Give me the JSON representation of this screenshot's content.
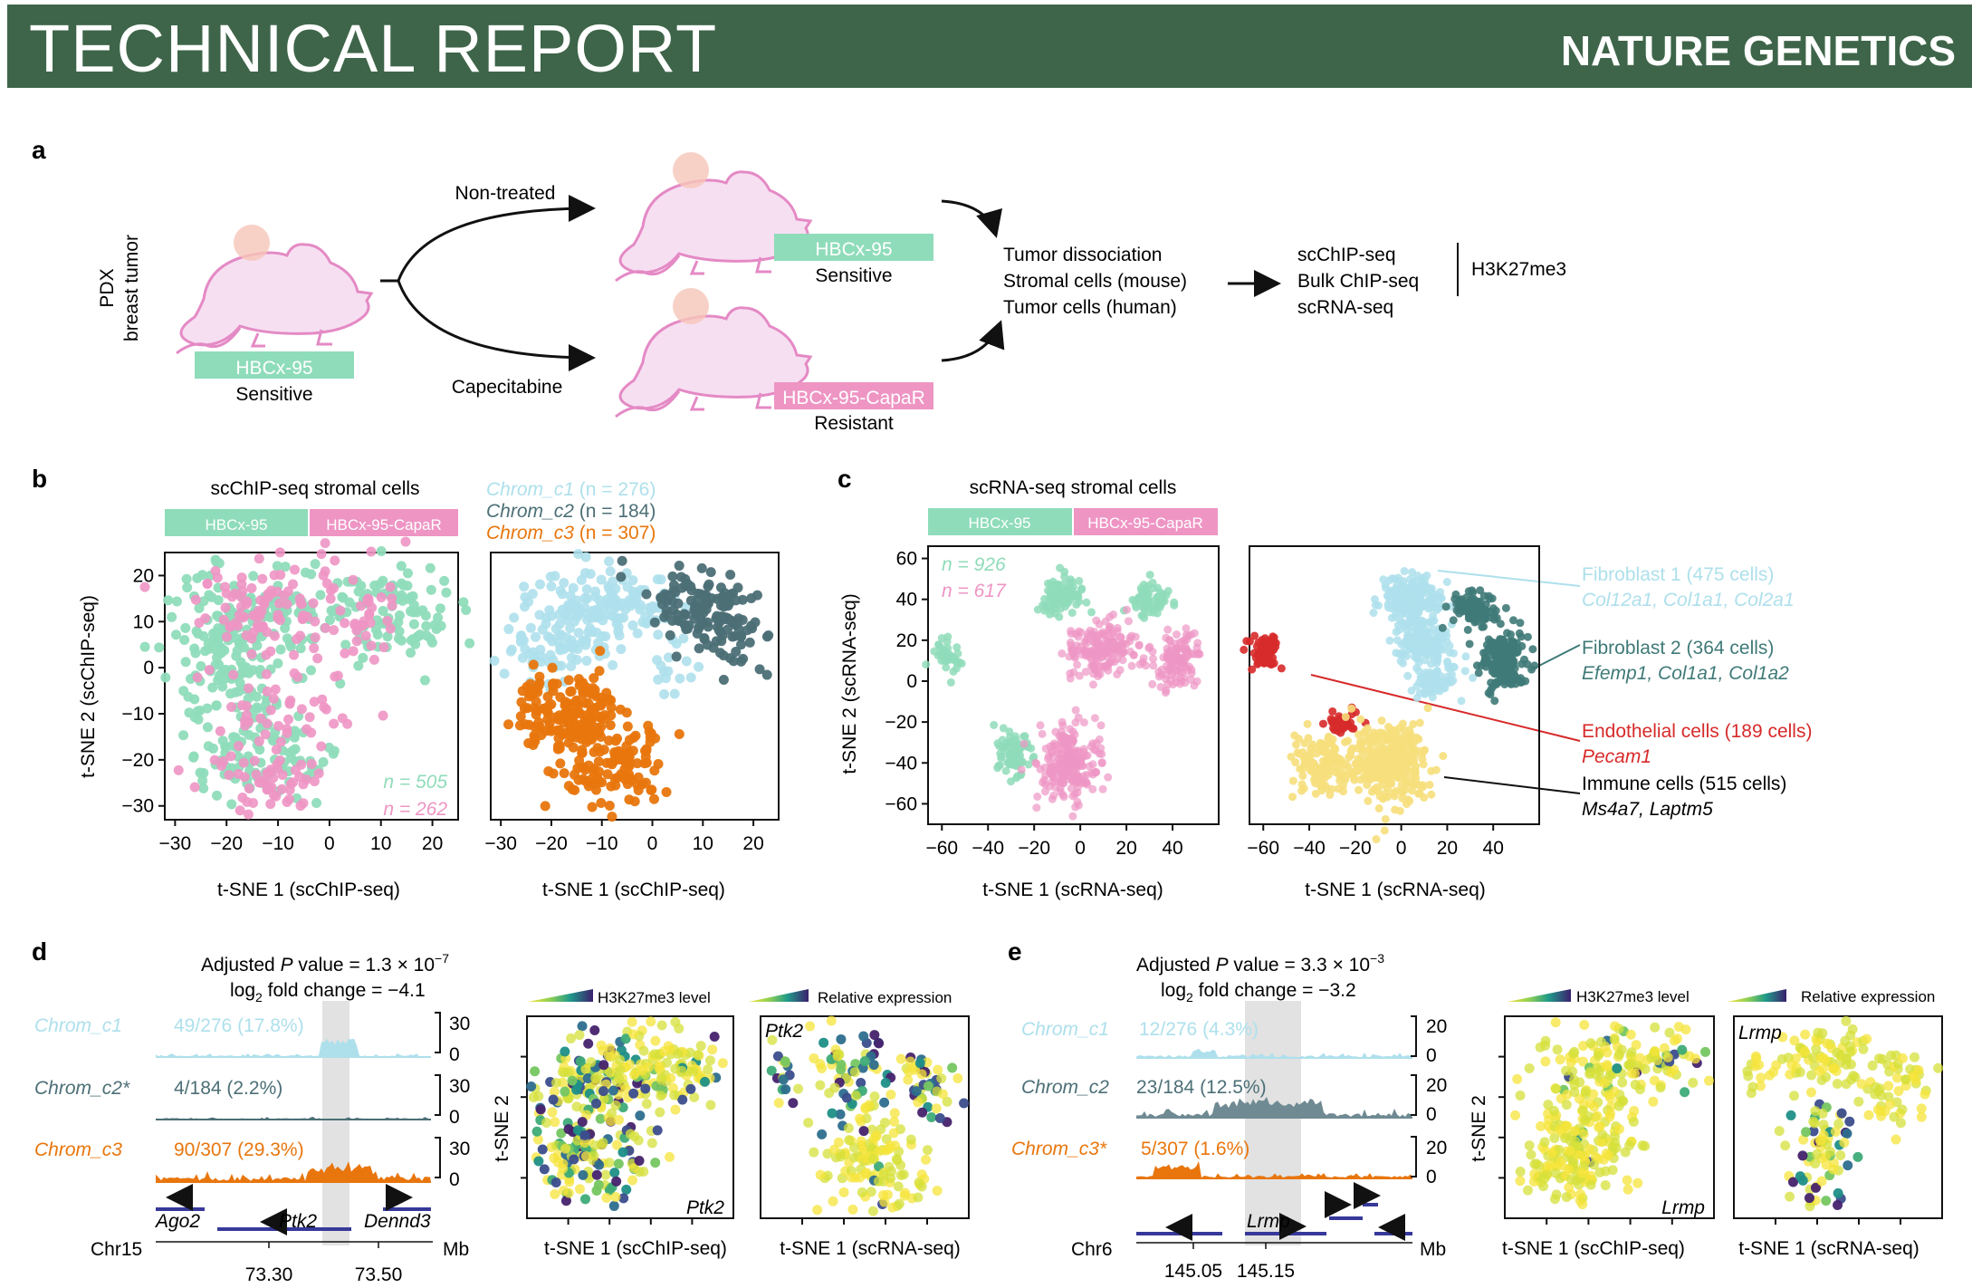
{
  "header": {
    "title": "TECHNICAL REPORT",
    "journal": "NATURE GENETICS"
  },
  "colors": {
    "hbcx95": "#8fdcba",
    "capar": "#ee95c4",
    "c1": "#aee0ec",
    "c2": "#4c6f76",
    "c3": "#e8760d",
    "fib2": "#3f7a78",
    "endo": "#d72a2a",
    "immune": "#f6df7c",
    "gene": "#37399a",
    "mouse": "#f7dff2",
    "mouse_outline": "#e48ac5"
  },
  "panel_a": {
    "label": "a",
    "side_label_1": "PDX",
    "side_label_2": "breast tumor",
    "source": {
      "tag": "HBCx-95",
      "status": "Sensitive"
    },
    "top_arrow": "Non-treated",
    "bottom_arrow": "Capecitabine",
    "sensitive": {
      "tag": "HBCx-95",
      "status": "Sensitive"
    },
    "resistant": {
      "tag": "HBCx-95-CapaR",
      "status": "Resistant"
    },
    "steps": [
      "Tumor dissociation",
      "Stromal cells (mouse)",
      "Tumor cells (human)"
    ],
    "assays": [
      "scChIP-seq",
      "Bulk ChIP-seq",
      "scRNA-seq"
    ],
    "mark": "H3K27me3"
  },
  "panel_b": {
    "label": "b",
    "title": "scChIP-seq stromal cells",
    "bar_left": "HBCx-95",
    "bar_right": "HBCx-95-CapaR",
    "ylabel": "t-SNE 2 (scChIP-seq)",
    "xlabel": "t-SNE 1 (scChIP-seq)",
    "n1": "n = 505",
    "n2": "n = 262",
    "legend": [
      {
        "name": "Chrom_c1",
        "count": " (n = 276)"
      },
      {
        "name": "Chrom_c2",
        "count": " (n = 184)"
      },
      {
        "name": "Chrom_c3",
        "count": " (n = 307)"
      }
    ]
  },
  "panel_c": {
    "label": "c",
    "title": "scRNA-seq stromal cells",
    "bar_left": "HBCx-95",
    "bar_right": "HBCx-95-CapaR",
    "ylabel": "t-SNE 2 (scRNA-seq)",
    "xlabel": "t-SNE 1 (scRNA-seq)",
    "n1": "n = 926",
    "n2": "n = 617",
    "annotations": [
      {
        "title": "Fibroblast 1 (475 cells)",
        "genes": "Col12a1, Col1a1, Col2a1"
      },
      {
        "title": "Fibroblast 2 (364 cells)",
        "genes": "Efemp1, Col1a1, Col1a2"
      },
      {
        "title": "Endothelial cells (189 cells)",
        "genes": "Pecam1"
      },
      {
        "title": "Immune cells (515 cells)",
        "genes": "Ms4a7, Laptm5"
      }
    ]
  },
  "panel_d": {
    "label": "d",
    "pvalue_prefix": "Adjusted ",
    "pvalue_p": "P",
    "pvalue_mid": " value = 1.3 × 10",
    "pvalue_exp": "−7",
    "fc_prefix": "log",
    "fc_sub": "2",
    "fc_rest": " fold change = −4.1",
    "tracks": [
      {
        "name": "Chrom_c1",
        "stat": "49/276 (17.8%)"
      },
      {
        "name": "Chrom_c2*",
        "stat": "4/184 (2.2%)"
      },
      {
        "name": "Chrom_c3",
        "stat": "90/307 (29.3%)"
      }
    ],
    "scale_top": "30",
    "scale_bottom": "0",
    "genes": [
      "Ago2",
      "Ptk2",
      "Dennd3"
    ],
    "chrom": "Chr15",
    "unit": "Mb",
    "ticks": [
      "73.30",
      "73.50"
    ],
    "chip_legend": "H3K27me3 level",
    "rna_legend": "Relative expression",
    "gene_label": "Ptk2",
    "xlabel_chip": "t-SNE 1 (scChIP-seq)",
    "xlabel_rna": "t-SNE 1 (scRNA-seq)",
    "ylabel": "t-SNE 2"
  },
  "panel_e": {
    "label": "e",
    "pvalue_prefix": "Adjusted ",
    "pvalue_p": "P",
    "pvalue_mid": " value = 3.3 × 10",
    "pvalue_exp": "−3",
    "fc_prefix": "log",
    "fc_sub": "2",
    "fc_rest": " fold change = −3.2",
    "tracks": [
      {
        "name": "Chrom_c1",
        "stat": "12/276 (4.3%)"
      },
      {
        "name": "Chrom_c2",
        "stat": "23/184 (12.5%)"
      },
      {
        "name": "Chrom_c3*",
        "stat": "5/307 (1.6%)"
      }
    ],
    "scale_top": "20",
    "scale_bottom": "0",
    "genes": [
      "Lrmp"
    ],
    "chrom": "Chr6",
    "unit": "Mb",
    "ticks": [
      "145.05",
      "145.15"
    ],
    "chip_legend": "H3K27me3 level",
    "rna_legend": "Relative expression",
    "gene_label": "Lrmp",
    "xlabel_chip": "t-SNE 1 (scChIP-seq)",
    "xlabel_rna": "t-SNE 1 (scRNA-seq)",
    "ylabel": "t-SNE 2"
  },
  "chart_data": [
    {
      "type": "scatter",
      "title": "scChIP-seq stromal cells",
      "xlabel": "t-SNE 1 (scChIP-seq)",
      "ylabel": "t-SNE 2 (scChIP-seq)",
      "xticks": [
        -30,
        -20,
        -10,
        0,
        10,
        20
      ],
      "yticks": [
        -30,
        -20,
        -10,
        0,
        10,
        20
      ],
      "xlim": [
        -32,
        25
      ],
      "ylim": [
        -33,
        25
      ],
      "series": [
        {
          "name": "HBCx-95",
          "n": 505
        },
        {
          "name": "HBCx-95-CapaR",
          "n": 262
        }
      ]
    },
    {
      "type": "scatter",
      "xlabel": "t-SNE 1 (scChIP-seq)",
      "xticks": [
        -30,
        -20,
        -10,
        0,
        10,
        20
      ],
      "xlim": [
        -32,
        25
      ],
      "ylim": [
        -33,
        25
      ],
      "series": [
        {
          "name": "Chrom_c1",
          "n": 276
        },
        {
          "name": "Chrom_c2",
          "n": 184
        },
        {
          "name": "Chrom_c3",
          "n": 307
        }
      ]
    },
    {
      "type": "scatter",
      "title": "scRNA-seq stromal cells",
      "xlabel": "t-SNE 1 (scRNA-seq)",
      "ylabel": "t-SNE 2 (scRNA-seq)",
      "xticks": [
        -60,
        -40,
        -20,
        0,
        20,
        40
      ],
      "yticks": [
        -60,
        -40,
        -20,
        0,
        20,
        40,
        60
      ],
      "xlim": [
        -66,
        60
      ],
      "ylim": [
        -70,
        66
      ],
      "series": [
        {
          "name": "HBCx-95",
          "n": 926
        },
        {
          "name": "HBCx-95-CapaR",
          "n": 617
        }
      ]
    },
    {
      "type": "scatter",
      "xlabel": "t-SNE 1 (scRNA-seq)",
      "xticks": [
        -60,
        -40,
        -20,
        0,
        20,
        40
      ],
      "xlim": [
        -66,
        60
      ],
      "ylim": [
        -70,
        66
      ],
      "series": [
        {
          "name": "Fibroblast 1",
          "n": 475
        },
        {
          "name": "Fibroblast 2",
          "n": 364
        },
        {
          "name": "Endothelial cells",
          "n": 189
        },
        {
          "name": "Immune cells",
          "n": 515
        }
      ]
    }
  ]
}
